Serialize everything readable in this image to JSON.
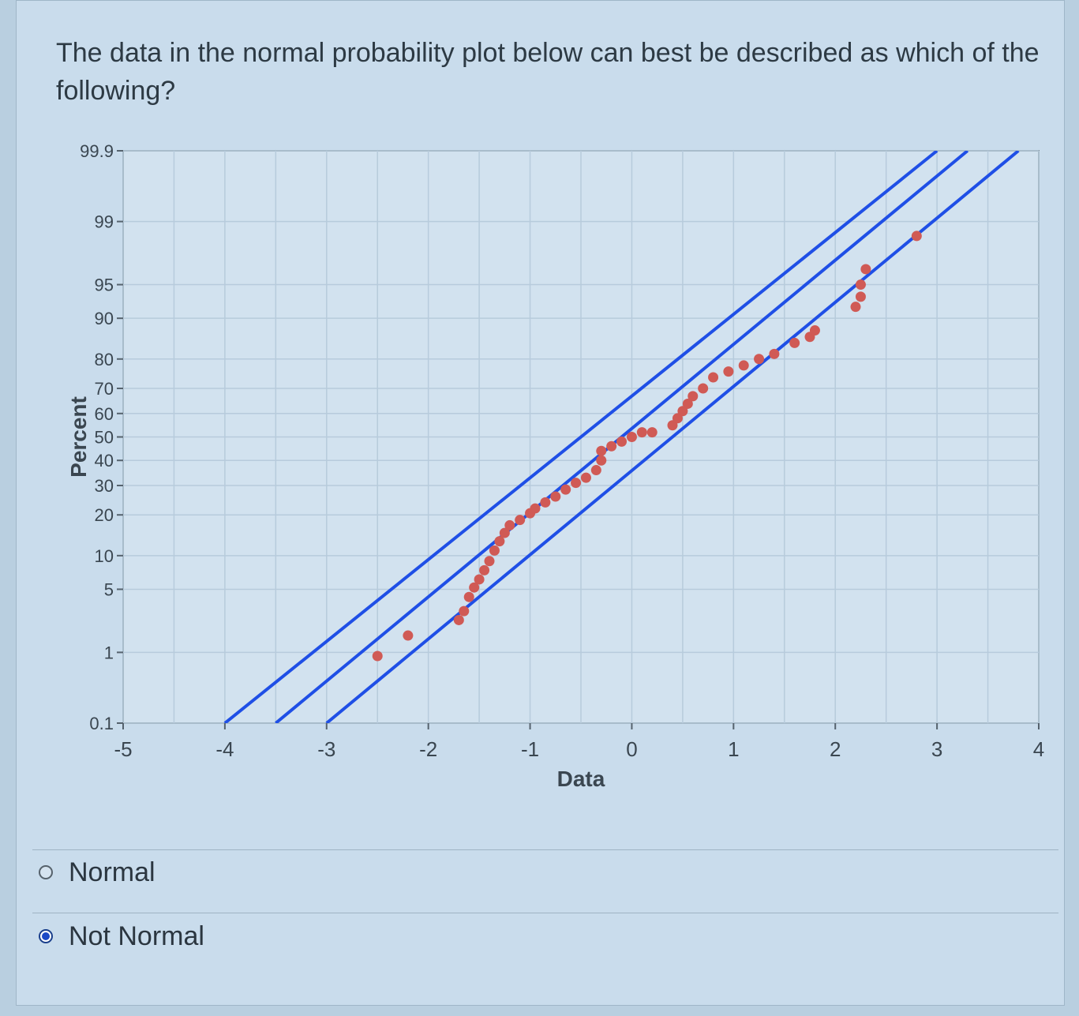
{
  "question": "The data in the normal probability plot below can best be described as which of the following?",
  "options": [
    {
      "label": "Normal",
      "selected": false
    },
    {
      "label": "Not Normal",
      "selected": true
    }
  ],
  "colors": {
    "points": "#d05a55",
    "lines": "#1f4fe6",
    "selected_radio": "#1b48c6"
  },
  "chart_data": {
    "type": "scatter",
    "title": "",
    "xlabel": "Data",
    "ylabel": "Percent",
    "xlim": [
      -5,
      4
    ],
    "xticks": [
      -5,
      -4,
      -3,
      -2,
      -1,
      0,
      1,
      2,
      3,
      4
    ],
    "yscale": "normal-probability",
    "yticks": [
      0.1,
      1,
      5,
      10,
      20,
      30,
      40,
      50,
      60,
      70,
      80,
      90,
      95,
      99,
      99.9
    ],
    "ytick_labels": [
      "0.1",
      "1",
      "5",
      "10",
      "20",
      "30",
      "40",
      "50",
      "60",
      "70",
      "80",
      "90",
      "95",
      "99",
      "99.9"
    ],
    "grid": true,
    "fit_lines": [
      {
        "points": [
          [
            -4.0,
            0.1
          ],
          [
            3.0,
            99.9
          ]
        ]
      },
      {
        "points": [
          [
            -3.5,
            0.1
          ],
          [
            3.3,
            99.9
          ]
        ]
      },
      {
        "points": [
          [
            -3.0,
            0.1
          ],
          [
            3.8,
            99.9
          ]
        ]
      }
    ],
    "points": [
      [
        -2.5,
        0.9
      ],
      [
        -2.2,
        1.6
      ],
      [
        -1.7,
        2.4
      ],
      [
        -1.65,
        3.0
      ],
      [
        -1.6,
        4.2
      ],
      [
        -1.55,
        5.2
      ],
      [
        -1.5,
        6.2
      ],
      [
        -1.45,
        7.5
      ],
      [
        -1.4,
        9.0
      ],
      [
        -1.35,
        11.0
      ],
      [
        -1.3,
        13.0
      ],
      [
        -1.25,
        15.0
      ],
      [
        -1.2,
        17.0
      ],
      [
        -1.1,
        18.5
      ],
      [
        -1.0,
        20.5
      ],
      [
        -0.95,
        22.0
      ],
      [
        -0.85,
        24.0
      ],
      [
        -0.75,
        26.0
      ],
      [
        -0.65,
        28.5
      ],
      [
        -0.55,
        31.0
      ],
      [
        -0.45,
        33.0
      ],
      [
        -0.35,
        36.0
      ],
      [
        -0.3,
        40.0
      ],
      [
        -0.3,
        44.0
      ],
      [
        -0.2,
        46.0
      ],
      [
        -0.1,
        48.0
      ],
      [
        0.0,
        50.0
      ],
      [
        0.1,
        52.0
      ],
      [
        0.2,
        52.0
      ],
      [
        0.4,
        55.0
      ],
      [
        0.45,
        58.0
      ],
      [
        0.5,
        61.0
      ],
      [
        0.55,
        64.0
      ],
      [
        0.6,
        67.0
      ],
      [
        0.7,
        70.0
      ],
      [
        0.8,
        74.0
      ],
      [
        0.95,
        76.0
      ],
      [
        1.1,
        78.0
      ],
      [
        1.25,
        80.0
      ],
      [
        1.4,
        81.5
      ],
      [
        1.6,
        84.5
      ],
      [
        1.75,
        86.0
      ],
      [
        1.8,
        87.5
      ],
      [
        2.2,
        92.0
      ],
      [
        2.25,
        93.5
      ],
      [
        2.25,
        95.0
      ],
      [
        2.3,
        96.5
      ],
      [
        2.8,
        98.5
      ]
    ]
  }
}
